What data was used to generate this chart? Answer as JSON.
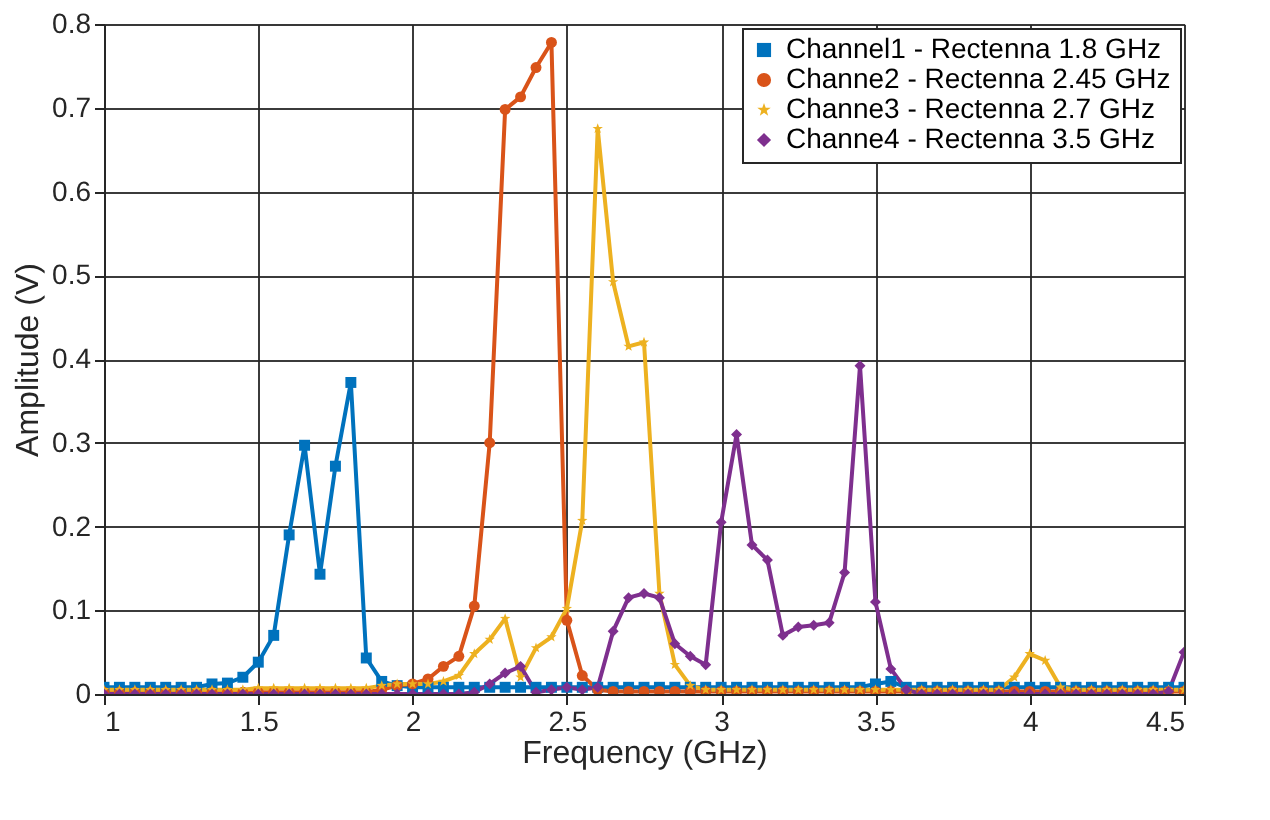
{
  "chart_data": {
    "type": "line",
    "xlabel": "Frequency (GHz)",
    "ylabel": "Amplitude (V)",
    "x": [
      1,
      1.05,
      1.1,
      1.15,
      1.2,
      1.25,
      1.3,
      1.35,
      1.4,
      1.45,
      1.5,
      1.55,
      1.6,
      1.65,
      1.7,
      1.75,
      1.8,
      1.85,
      1.9,
      1.95,
      2,
      2.05,
      2.1,
      2.15,
      2.2,
      2.25,
      2.3,
      2.35,
      2.4,
      2.45,
      2.5,
      2.55,
      2.6,
      2.65,
      2.7,
      2.75,
      2.8,
      2.85,
      2.9,
      2.95,
      3,
      3.05,
      3.1,
      3.15,
      3.2,
      3.25,
      3.3,
      3.35,
      3.4,
      3.45,
      3.5,
      3.55,
      3.6,
      3.65,
      3.7,
      3.75,
      3.8,
      3.85,
      3.9,
      3.95,
      4,
      4.05,
      4.1,
      4.15,
      4.2,
      4.25,
      4.3,
      4.35,
      4.4,
      4.45,
      4.5
    ],
    "series": [
      {
        "name": "Channel1 - Rectenna 1.8 GHz",
        "color": "#0072bd",
        "marker": "square",
        "values": [
          0.008,
          0.008,
          0.008,
          0.008,
          0.008,
          0.008,
          0.008,
          0.012,
          0.013,
          0.02,
          0.038,
          0.07,
          0.19,
          0.297,
          0.143,
          0.272,
          0.372,
          0.043,
          0.015,
          0.01,
          0.008,
          0.008,
          0.008,
          0.008,
          0.008,
          0.008,
          0.008,
          0.008,
          0.008,
          0.008,
          0.008,
          0.008,
          0.008,
          0.008,
          0.008,
          0.008,
          0.008,
          0.008,
          0.008,
          0.008,
          0.008,
          0.008,
          0.008,
          0.008,
          0.008,
          0.008,
          0.008,
          0.008,
          0.008,
          0.008,
          0.012,
          0.015,
          0.008,
          0.008,
          0.008,
          0.008,
          0.008,
          0.008,
          0.008,
          0.008,
          0.008,
          0.008,
          0.008,
          0.008,
          0.008,
          0.008,
          0.008,
          0.008,
          0.008,
          0.008,
          0.008
        ]
      },
      {
        "name": "Channe2 - Rectenna 2.45 GHz",
        "color": "#d95319",
        "marker": "circle",
        "values": [
          0.002,
          0.002,
          0.002,
          0.002,
          0.002,
          0.002,
          0.002,
          0.002,
          0.002,
          0.002,
          0.002,
          0.002,
          0.002,
          0.002,
          0.002,
          0.002,
          0.002,
          0.002,
          0.005,
          0.01,
          0.012,
          0.018,
          0.033,
          0.045,
          0.105,
          0.3,
          0.698,
          0.713,
          0.748,
          0.778,
          0.088,
          0.022,
          0.005,
          0.003,
          0.003,
          0.003,
          0.003,
          0.003,
          0.003,
          0.003,
          0.003,
          0.003,
          0.003,
          0.003,
          0.003,
          0.003,
          0.003,
          0.003,
          0.003,
          0.003,
          0.003,
          0.003,
          0.003,
          0.003,
          0.003,
          0.003,
          0.003,
          0.003,
          0.003,
          0.003,
          0.003,
          0.003,
          0.003,
          0.003,
          0.003,
          0.003,
          0.003,
          0.003,
          0.003,
          0.003,
          0.003
        ]
      },
      {
        "name": "Channe3 - Rectenna 2.7 GHz",
        "color": "#edb120",
        "marker": "star",
        "values": [
          0.005,
          0.005,
          0.005,
          0.005,
          0.005,
          0.005,
          0.005,
          0.005,
          0.005,
          0.005,
          0.007,
          0.007,
          0.007,
          0.007,
          0.007,
          0.007,
          0.007,
          0.007,
          0.01,
          0.012,
          0.012,
          0.012,
          0.015,
          0.022,
          0.048,
          0.065,
          0.09,
          0.02,
          0.055,
          0.068,
          0.102,
          0.207,
          0.675,
          0.492,
          0.415,
          0.42,
          0.12,
          0.035,
          0.01,
          0.005,
          0.005,
          0.005,
          0.005,
          0.005,
          0.005,
          0.005,
          0.005,
          0.005,
          0.005,
          0.005,
          0.005,
          0.005,
          0.005,
          0.005,
          0.005,
          0.005,
          0.005,
          0.005,
          0.005,
          0.02,
          0.048,
          0.04,
          0.008,
          0.005,
          0.005,
          0.005,
          0.005,
          0.005,
          0.005,
          0.005,
          0.005
        ]
      },
      {
        "name": "Channe4 - Rectenna 3.5 GHz",
        "color": "#7e2f8e",
        "marker": "diamond",
        "values": [
          0,
          0,
          0,
          0,
          0,
          0,
          0,
          0,
          0,
          0,
          0,
          0,
          0,
          0,
          0,
          0,
          0,
          0,
          0,
          0,
          0,
          0,
          0,
          0,
          0.002,
          0.012,
          0.025,
          0.033,
          0.002,
          0.005,
          0.008,
          0.005,
          0.008,
          0.075,
          0.115,
          0.12,
          0.115,
          0.06,
          0.045,
          0.035,
          0.205,
          0.31,
          0.178,
          0.16,
          0.07,
          0.08,
          0.082,
          0.085,
          0.145,
          0.392,
          0.11,
          0.03,
          0.005,
          0,
          0,
          0,
          0,
          0,
          0,
          0,
          0,
          0,
          0,
          0,
          0,
          0,
          0,
          0,
          0,
          0.003,
          0.05
        ]
      }
    ],
    "xlim": [
      1,
      4.5
    ],
    "xticks": [
      1,
      1.5,
      2,
      2.5,
      3,
      3.5,
      4,
      4.5
    ],
    "ylim": [
      0,
      0.8
    ],
    "yticks": [
      0,
      0.1,
      0.2,
      0.3,
      0.4,
      0.5,
      0.6,
      0.7,
      0.8
    ],
    "grid": true,
    "legend": "top right",
    "line_style": "solid"
  }
}
